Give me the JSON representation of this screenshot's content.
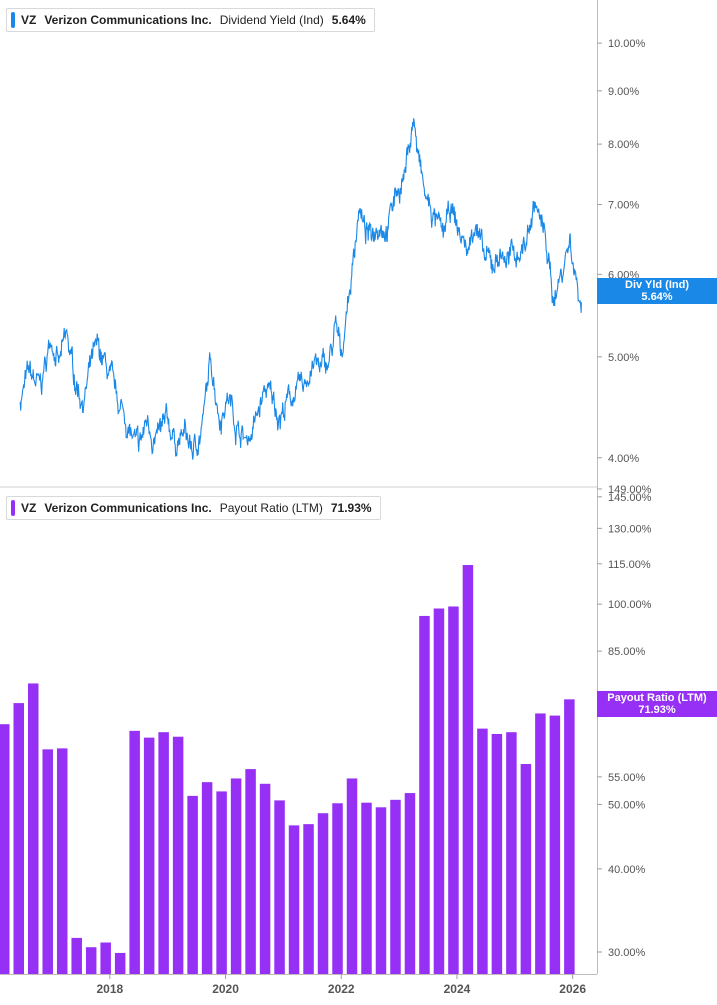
{
  "chart_data": [
    {
      "type": "line",
      "ticker": "VZ",
      "company": "Verizon Communications Inc.",
      "metric": "Dividend Yield (Ind)",
      "current_value": "5.64%",
      "tag_label": "Div Yld (Ind)",
      "color": "#1a88e6",
      "scale": "log",
      "ylim": [
        3.75,
        11.0
      ],
      "y_ticks": [
        {
          "label": "4.00%",
          "value": 4.0
        },
        {
          "label": "5.00%",
          "value": 5.0
        },
        {
          "label": "6.00%",
          "value": 6.0
        },
        {
          "label": "7.00%",
          "value": 7.0
        },
        {
          "label": "8.00%",
          "value": 8.0
        },
        {
          "label": "9.00%",
          "value": 9.0
        },
        {
          "label": "10.00%",
          "value": 10.0
        }
      ],
      "x_range": [
        2016.95,
        2027.3
      ],
      "anchors": [
        [
          2016.95,
          4.55
        ],
        [
          2017.1,
          4.8
        ],
        [
          2017.3,
          4.65
        ],
        [
          2017.5,
          5.25
        ],
        [
          2017.62,
          4.9
        ],
        [
          2017.75,
          5.2
        ],
        [
          2017.9,
          4.75
        ],
        [
          2018.05,
          4.55
        ],
        [
          2018.2,
          4.95
        ],
        [
          2018.3,
          5.05
        ],
        [
          2018.45,
          4.85
        ],
        [
          2018.6,
          4.55
        ],
        [
          2018.75,
          4.4
        ],
        [
          2018.9,
          4.15
        ],
        [
          2019.0,
          4.05
        ],
        [
          2019.15,
          4.35
        ],
        [
          2019.3,
          4.15
        ],
        [
          2019.5,
          4.3
        ],
        [
          2019.65,
          4.15
        ],
        [
          2019.8,
          4.2
        ],
        [
          2019.95,
          4.05
        ],
        [
          2020.1,
          4.3
        ],
        [
          2020.25,
          4.95
        ],
        [
          2020.4,
          4.4
        ],
        [
          2020.55,
          4.6
        ],
        [
          2020.7,
          4.3
        ],
        [
          2020.85,
          4.15
        ],
        [
          2021.0,
          4.3
        ],
        [
          2021.2,
          4.65
        ],
        [
          2021.45,
          4.4
        ],
        [
          2021.65,
          4.6
        ],
        [
          2021.85,
          4.65
        ],
        [
          2022.0,
          4.95
        ],
        [
          2022.15,
          4.85
        ],
        [
          2022.3,
          4.95
        ],
        [
          2022.4,
          5.3
        ],
        [
          2022.5,
          5.0
        ],
        [
          2022.6,
          5.6
        ],
        [
          2022.7,
          6.1
        ],
        [
          2022.8,
          7.0
        ],
        [
          2022.9,
          6.6
        ],
        [
          2023.0,
          6.5
        ],
        [
          2023.15,
          6.8
        ],
        [
          2023.3,
          6.7
        ],
        [
          2023.45,
          7.2
        ],
        [
          2023.6,
          7.5
        ],
        [
          2023.75,
          8.5
        ],
        [
          2023.82,
          7.8
        ],
        [
          2023.95,
          7.1
        ],
        [
          2024.1,
          6.8
        ],
        [
          2024.25,
          6.5
        ],
        [
          2024.4,
          6.9
        ],
        [
          2024.55,
          6.55
        ],
        [
          2024.7,
          6.3
        ],
        [
          2024.82,
          6.85
        ],
        [
          2024.95,
          6.2
        ],
        [
          2025.1,
          6.1
        ],
        [
          2025.25,
          6.3
        ],
        [
          2025.4,
          6.2
        ],
        [
          2025.55,
          6.3
        ],
        [
          2025.7,
          6.45
        ],
        [
          2025.85,
          7.05
        ],
        [
          2025.95,
          6.7
        ],
        [
          2026.05,
          6.4
        ],
        [
          2026.15,
          5.7
        ],
        [
          2026.3,
          6.0
        ],
        [
          2026.45,
          6.5
        ],
        [
          2026.55,
          6.0
        ],
        [
          2026.65,
          5.64
        ]
      ]
    },
    {
      "type": "bar",
      "ticker": "VZ",
      "company": "Verizon Communications Inc.",
      "metric": "Payout Ratio (LTM)",
      "current_value": "71.93%",
      "tag_label": "Payout Ratio (LTM)",
      "color": "#9630f5",
      "scale": "log",
      "ylim": [
        27.8,
        150.0
      ],
      "y_ticks": [
        {
          "label": "30.00%",
          "value": 30
        },
        {
          "label": "40.00%",
          "value": 40
        },
        {
          "label": "50.00%",
          "value": 50
        },
        {
          "label": "55.00%",
          "value": 55
        },
        {
          "label": "85.00%",
          "value": 85
        },
        {
          "label": "100.00%",
          "value": 100
        },
        {
          "label": "115.00%",
          "value": 115
        },
        {
          "label": "130.00%",
          "value": 130
        },
        {
          "label": "145.00%",
          "value": 145
        },
        {
          "label": "149.00%",
          "value": 149
        }
      ],
      "x_ticks": [
        "2018",
        "2020",
        "2022",
        "2024",
        "2026"
      ],
      "values": [
        66,
        71,
        76,
        60.5,
        60.7,
        31.5,
        30.5,
        31,
        29.9,
        64.5,
        63,
        64.2,
        63.2,
        51.5,
        54,
        52.3,
        54.7,
        56.5,
        53.7,
        50.7,
        46.5,
        46.7,
        48.5,
        50.2,
        54.7,
        50.3,
        49.5,
        50.8,
        52,
        96,
        98.5,
        99.2,
        114.5,
        65,
        63.8,
        64.2,
        57.5,
        68.5,
        68,
        71.93
      ]
    }
  ]
}
